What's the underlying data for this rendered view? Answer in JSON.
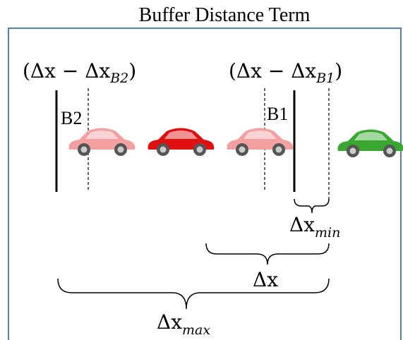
{
  "title": "Buffer Distance Term",
  "buffer_labels": [
    {
      "text": "(Δx − Δx",
      "sub": "B2",
      "close": ")"
    },
    {
      "text": "(Δx − Δx",
      "sub": "B1",
      "close": ")"
    }
  ],
  "boundaries": [
    "B2",
    "B1"
  ],
  "distances": [
    {
      "text": "Δx",
      "sub": "min"
    },
    {
      "text": "Δx"
    },
    {
      "text": "Δx",
      "sub": "max"
    }
  ]
}
